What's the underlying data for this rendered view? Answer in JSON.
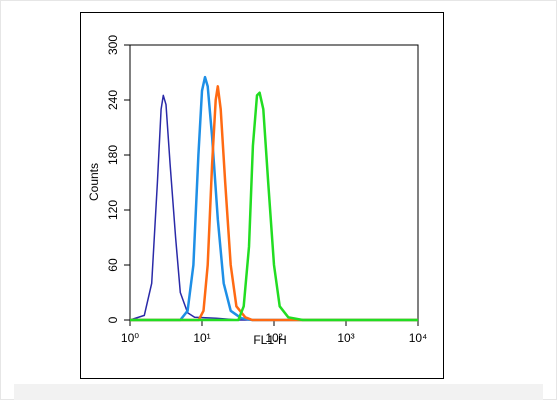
{
  "chart_data": {
    "type": "line",
    "x_label": "FL1-H",
    "y_label": "Counts",
    "xscale": "log",
    "xlim": [
      1,
      10000
    ],
    "xticks": [
      {
        "value": 1,
        "label": "10⁰"
      },
      {
        "value": 10,
        "label": "10¹"
      },
      {
        "value": 100,
        "label": "10²"
      },
      {
        "value": 1000,
        "label": "10³"
      },
      {
        "value": 10000,
        "label": "10⁴"
      }
    ],
    "ylim": [
      0,
      300
    ],
    "yticks": [
      0,
      60,
      120,
      180,
      240,
      300
    ],
    "series": [
      {
        "color": "#2a2aa8",
        "x": [
          1,
          1.58,
          2.0,
          2.4,
          2.7,
          2.9,
          3.16,
          3.6,
          4.3,
          5.0,
          6.3,
          7.9,
          15.8,
          31.6,
          10000
        ],
        "values": [
          0,
          5,
          40,
          150,
          230,
          245,
          235,
          170,
          90,
          30,
          8,
          3,
          2,
          0,
          0
        ]
      },
      {
        "color": "#1e8fe6",
        "x": [
          1,
          5.0,
          6.3,
          7.6,
          8.9,
          10,
          11,
          12,
          13.8,
          16.6,
          20,
          25,
          35,
          50,
          10000
        ],
        "values": [
          0,
          0,
          10,
          60,
          180,
          250,
          265,
          255,
          200,
          110,
          40,
          10,
          2,
          0,
          0
        ]
      },
      {
        "color": "#ff6a13",
        "x": [
          1,
          9,
          10.5,
          12,
          13.8,
          15.5,
          16.6,
          18.2,
          21,
          25,
          30,
          40,
          50,
          10000
        ],
        "values": [
          0,
          0,
          10,
          60,
          170,
          240,
          255,
          230,
          150,
          60,
          15,
          3,
          0,
          0
        ]
      },
      {
        "color": "#22dd22",
        "x": [
          1,
          32,
          38,
          45,
          51,
          58,
          63,
          71,
          83,
          100,
          120,
          158,
          251,
          10000
        ],
        "values": [
          0,
          0,
          15,
          80,
          190,
          245,
          248,
          230,
          150,
          60,
          15,
          3,
          0,
          0
        ]
      }
    ]
  }
}
